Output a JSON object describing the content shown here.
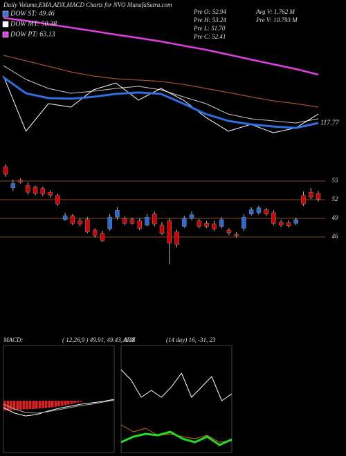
{
  "chart_data": [
    {
      "type": "line",
      "title": "Daily Volume,EMA,ADX,MACD Charts for NVO MunafaSutra.com",
      "legend": [
        {
          "label": "DOW ST: 49.46",
          "color": "#3a6fd8"
        },
        {
          "label": "DOW MT: 50.38",
          "color": "#ffffff"
        },
        {
          "label": "DOW PT: 63.13",
          "color": "#e040e0"
        }
      ],
      "stats": [
        "Pre O: 52.94",
        "Avg V: 1.762 M",
        "Pre H: 53.24",
        "Pre V: 10.793 M",
        "Pre L: 51.70",
        "Pre C: 52.41"
      ],
      "annotation": "117.77",
      "ylim": [
        0,
        100
      ],
      "series": [
        {
          "color": "#e040e0",
          "width": 2.5,
          "values": [
            96.7,
            94.4,
            91.7,
            88.9,
            86.1,
            83.3,
            80.6,
            77.8,
            74.4,
            71.1,
            67.2,
            63.3,
            59.4,
            55.6,
            51.1
          ]
        },
        {
          "color": "#a0522d",
          "width": 1.2,
          "values": [
            66.7,
            62.2,
            57.8,
            53.3,
            50,
            47.8,
            46.7,
            45.6,
            43.3,
            40,
            36.7,
            33.3,
            30,
            27.8,
            25
          ]
        },
        {
          "color": "#cccccc",
          "width": 1,
          "values": [
            58.3,
            47.2,
            40,
            36.1,
            37.8,
            40,
            41.7,
            38.9,
            33.3,
            27.8,
            19.4,
            15.6,
            13.9,
            12.2,
            15.6
          ]
        },
        {
          "color": "#ffffff",
          "width": 1,
          "values": [
            50,
            5.6,
            27.8,
            25,
            38.9,
            44.4,
            30.6,
            40,
            30.6,
            16.7,
            5.6,
            11.1,
            4.4,
            8.3,
            19.4
          ]
        },
        {
          "color": "#2f6fe0",
          "width": 3,
          "values": [
            48.9,
            36.1,
            32.2,
            31.7,
            33.3,
            35.6,
            36.7,
            35.6,
            27.8,
            19.4,
            13.9,
            11.1,
            9.4,
            8.3,
            12.2
          ]
        }
      ]
    },
    {
      "type": "candlestick",
      "ylim": [
        41,
        59
      ],
      "yticks": [
        46,
        49,
        52,
        55
      ],
      "grid_color": "#8b4a1c",
      "up_color": "#2a6ad8",
      "down_color": "#d40000",
      "open": [
        57.3,
        53.9,
        55.1,
        54.3,
        54.0,
        53.8,
        53.2,
        52.7,
        48.8,
        49.4,
        48.6,
        48.8,
        47.1,
        46.6,
        47.3,
        49.2,
        49.0,
        48.8,
        48.6,
        47.9,
        49.7,
        47.9,
        48.6,
        46.8,
        47.7,
        49.0,
        48.6,
        48.2,
        48.1,
        47.7,
        47.1,
        46.4,
        47.4,
        49.7,
        49.9,
        50.4,
        49.9,
        48.4,
        48.3,
        48.2,
        52.7,
        53.2,
        53.0
      ],
      "high": [
        57.7,
        55.2,
        55.4,
        54.8,
        54.3,
        54.1,
        53.5,
        53.0,
        49.9,
        49.7,
        49.0,
        49.2,
        47.4,
        47.0,
        49.7,
        50.8,
        49.3,
        49.1,
        49.0,
        49.7,
        50.1,
        48.4,
        49.0,
        47.2,
        49.4,
        50.1,
        48.9,
        48.6,
        48.6,
        49.2,
        47.4,
        46.8,
        49.7,
        50.8,
        51.0,
        50.7,
        50.3,
        48.8,
        48.7,
        49.1,
        53.3,
        53.9,
        53.4
      ],
      "low": [
        55.7,
        53.4,
        54.6,
        52.8,
        52.7,
        52.6,
        52.3,
        51.0,
        48.6,
        47.9,
        47.7,
        46.6,
        45.9,
        45.2,
        47.0,
        48.8,
        47.9,
        48.0,
        47.1,
        47.7,
        47.7,
        46.3,
        41.6,
        44.3,
        47.5,
        48.7,
        47.4,
        47.4,
        47.0,
        47.4,
        46.3,
        45.9,
        47.0,
        49.4,
        49.6,
        49.4,
        47.9,
        47.6,
        47.5,
        47.9,
        51.0,
        52.1,
        51.7
      ],
      "close": [
        56.1,
        54.6,
        54.8,
        53.2,
        53.0,
        52.9,
        52.7,
        51.3,
        49.4,
        48.2,
        48.1,
        46.8,
        46.3,
        45.4,
        49.2,
        50.3,
        48.2,
        48.2,
        47.4,
        49.2,
        48.1,
        46.6,
        45.0,
        44.8,
        49.0,
        49.6,
        47.7,
        47.7,
        47.3,
        48.8,
        46.7,
        46.2,
        49.2,
        50.4,
        50.7,
        49.7,
        48.2,
        47.9,
        47.8,
        48.8,
        51.3,
        52.4,
        52.1
      ]
    },
    {
      "type": "line",
      "title": "MACD:",
      "params": "( 12,26,9 ) 49.91, 49.43, 0.48",
      "ylim": [
        -15,
        15
      ],
      "histogram": {
        "color": "#e02020",
        "values": [
          -2.8,
          -2.8,
          -2.7,
          -2.7,
          -2.6,
          -2.6,
          -2.5,
          -2.5,
          -2.4,
          -2.4,
          -2.3,
          -2.2,
          -2.2,
          -2.1,
          -2,
          -1.9,
          -1.8,
          -1.6,
          -1.5,
          -1.3,
          -1.1,
          -0.9,
          -0.7,
          -0.5,
          -0.3
        ]
      },
      "series": [
        {
          "color": "#ffffff",
          "width": 1,
          "values": [
            -2,
            -3.6,
            -4.4,
            -4,
            -3,
            -2.2,
            -1.6,
            -1,
            -0.6,
            -0.2,
            0.4
          ]
        },
        {
          "color": "#aaaaaa",
          "width": 1,
          "values": [
            -1,
            -2.4,
            -3.4,
            -3.6,
            -3.2,
            -2.6,
            -2,
            -1.4,
            -1,
            -0.4,
            0.2
          ]
        }
      ]
    },
    {
      "type": "line",
      "title": "ADX",
      "params": "(14 day) 16, -31, 23",
      "ylim": [
        0,
        60
      ],
      "series": [
        {
          "color": "#ffffff",
          "width": 1,
          "values": [
            48,
            42,
            32,
            36,
            32,
            38,
            46,
            32,
            38,
            44,
            30,
            34
          ]
        },
        {
          "color": "#d2691e",
          "width": 1,
          "values": [
            16,
            12,
            14,
            10,
            10.8,
            9.2,
            8,
            10,
            6,
            6.8
          ]
        },
        {
          "color": "#22dd22",
          "width": 3,
          "values": [
            6,
            9.2,
            10.8,
            10,
            12,
            8,
            6,
            9.2,
            4.4,
            7.6
          ]
        }
      ]
    }
  ]
}
